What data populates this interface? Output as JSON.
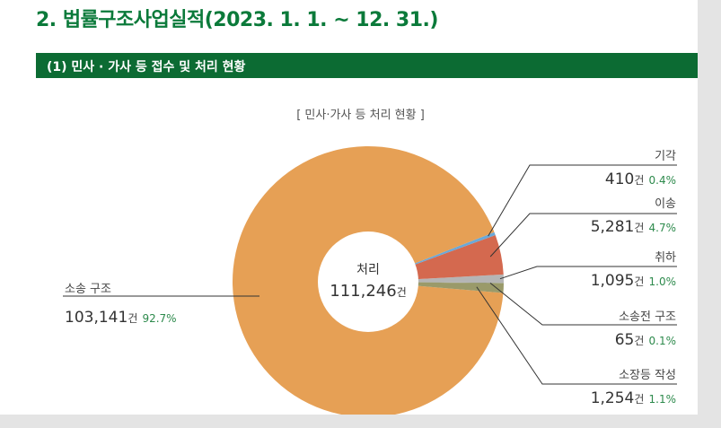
{
  "header": {
    "section_title": "2. 법률구조사업실적(2023. 1. 1. ~ 12. 31.)",
    "subsection_title": "(1) 민사 · 가사 등 접수 및 처리 현황"
  },
  "center": {
    "label": "처리",
    "total": "111,246",
    "unit": "건"
  },
  "colors": {
    "title_green": "#0b7a3a",
    "header_bar": "#0c6b33",
    "percent_green": "#2d8a4c",
    "slice_소송구조": "#e6a055",
    "slice_기각": "#6aa8d8",
    "slice_이송": "#d4694f",
    "slice_취하": "#b5b5b5",
    "slice_소송전구조": "#6f7b4f",
    "slice_소장등작성": "#9a9a6a"
  },
  "chart_data": {
    "type": "pie",
    "title": "[ 민사·가사 등 처리 현황 ]",
    "unit": "건",
    "total": 111246,
    "slices": [
      {
        "name": "소송 구조",
        "value": 103141,
        "value_text": "103,141",
        "percent": "92.7%",
        "color": "#e6a055"
      },
      {
        "name": "기각",
        "value": 410,
        "value_text": "410",
        "percent": "0.4%",
        "color": "#6aa8d8"
      },
      {
        "name": "이송",
        "value": 5281,
        "value_text": "5,281",
        "percent": "4.7%",
        "color": "#d4694f"
      },
      {
        "name": "취하",
        "value": 1095,
        "value_text": "1,095",
        "percent": "1.0%",
        "color": "#b5b5b5"
      },
      {
        "name": "소송전 구조",
        "value": 65,
        "value_text": "65",
        "percent": "0.1%",
        "color": "#6f7b4f"
      },
      {
        "name": "소장등 작성",
        "value": 1254,
        "value_text": "1,254",
        "percent": "1.1%",
        "color": "#9a9a6a"
      }
    ]
  }
}
